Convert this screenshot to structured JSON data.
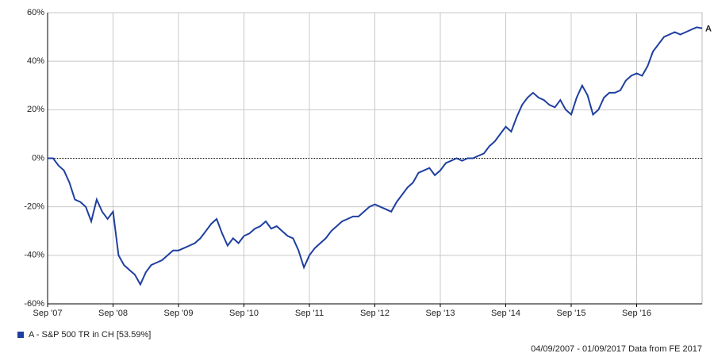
{
  "chart_data": {
    "type": "line",
    "x": [
      "2007-09",
      "2007-10",
      "2007-11",
      "2007-12",
      "2008-01",
      "2008-02",
      "2008-03",
      "2008-04",
      "2008-05",
      "2008-06",
      "2008-07",
      "2008-08",
      "2008-09",
      "2008-10",
      "2008-11",
      "2008-12",
      "2009-01",
      "2009-02",
      "2009-03",
      "2009-04",
      "2009-05",
      "2009-06",
      "2009-07",
      "2009-08",
      "2009-09",
      "2009-10",
      "2009-11",
      "2009-12",
      "2010-01",
      "2010-02",
      "2010-03",
      "2010-04",
      "2010-05",
      "2010-06",
      "2010-07",
      "2010-08",
      "2010-09",
      "2010-10",
      "2010-11",
      "2010-12",
      "2011-01",
      "2011-02",
      "2011-03",
      "2011-04",
      "2011-05",
      "2011-06",
      "2011-07",
      "2011-08",
      "2011-09",
      "2011-10",
      "2011-11",
      "2011-12",
      "2012-01",
      "2012-02",
      "2012-03",
      "2012-04",
      "2012-05",
      "2012-06",
      "2012-07",
      "2012-08",
      "2012-09",
      "2012-10",
      "2012-11",
      "2012-12",
      "2013-01",
      "2013-02",
      "2013-03",
      "2013-04",
      "2013-05",
      "2013-06",
      "2013-07",
      "2013-08",
      "2013-09",
      "2013-10",
      "2013-11",
      "2013-12",
      "2014-01",
      "2014-02",
      "2014-03",
      "2014-04",
      "2014-05",
      "2014-06",
      "2014-07",
      "2014-08",
      "2014-09",
      "2014-10",
      "2014-11",
      "2014-12",
      "2015-01",
      "2015-02",
      "2015-03",
      "2015-04",
      "2015-05",
      "2015-06",
      "2015-07",
      "2015-08",
      "2015-09",
      "2015-10",
      "2015-11",
      "2015-12",
      "2016-01",
      "2016-02",
      "2016-03",
      "2016-04",
      "2016-05",
      "2016-06",
      "2016-07",
      "2016-08",
      "2016-09",
      "2016-10",
      "2016-11",
      "2016-12",
      "2017-01",
      "2017-02",
      "2017-03",
      "2017-04",
      "2017-05",
      "2017-06",
      "2017-07",
      "2017-08",
      "2017-09"
    ],
    "series": [
      {
        "name": "A - S&P 500 TR in CH [53.59%]",
        "marker": "A",
        "color": "#1f3fa0",
        "values": [
          0,
          0,
          -3,
          -5,
          -10,
          -17,
          -18,
          -20,
          -26,
          -17,
          -22,
          -25,
          -22,
          -40,
          -44,
          -46,
          -48,
          -52,
          -47,
          -44,
          -43,
          -42,
          -40,
          -38,
          -38,
          -37,
          -36,
          -35,
          -33,
          -30,
          -27,
          -25,
          -31,
          -36,
          -33,
          -35,
          -32,
          -31,
          -29,
          -28,
          -26,
          -29,
          -28,
          -30,
          -32,
          -33,
          -38,
          -45,
          -40,
          -37,
          -35,
          -33,
          -30,
          -28,
          -26,
          -25,
          -24,
          -24,
          -22,
          -20,
          -19,
          -20,
          -21,
          -22,
          -18,
          -15,
          -12,
          -10,
          -6,
          -5,
          -4,
          -7,
          -5,
          -2,
          -1,
          0,
          -1,
          0,
          0,
          1,
          2,
          5,
          7,
          10,
          13,
          11,
          17,
          22,
          25,
          27,
          25,
          24,
          22,
          21,
          24,
          20,
          18,
          25,
          30,
          26,
          18,
          20,
          25,
          27,
          27,
          28,
          32,
          34,
          35,
          34,
          38,
          44,
          47,
          50,
          51,
          52,
          51,
          52,
          53,
          54,
          53.59
        ]
      }
    ],
    "xlim": [
      "2007-09",
      "2017-09"
    ],
    "xticks": [
      {
        "value": "2007-09",
        "label": "Sep '07"
      },
      {
        "value": "2008-09",
        "label": "Sep '08"
      },
      {
        "value": "2009-09",
        "label": "Sep '09"
      },
      {
        "value": "2010-09",
        "label": "Sep '10"
      },
      {
        "value": "2011-09",
        "label": "Sep '11"
      },
      {
        "value": "2012-09",
        "label": "Sep '12"
      },
      {
        "value": "2013-09",
        "label": "Sep '13"
      },
      {
        "value": "2014-09",
        "label": "Sep '14"
      },
      {
        "value": "2015-09",
        "label": "Sep '15"
      },
      {
        "value": "2016-09",
        "label": "Sep '16"
      }
    ],
    "ylim": [
      -60,
      60
    ],
    "yticks": [
      {
        "value": -60,
        "label": "-60%"
      },
      {
        "value": -40,
        "label": "-40%"
      },
      {
        "value": -20,
        "label": "-20%"
      },
      {
        "value": 0,
        "label": "0%"
      },
      {
        "value": 20,
        "label": "20%"
      },
      {
        "value": 40,
        "label": "40%"
      },
      {
        "value": 60,
        "label": "60%"
      }
    ],
    "grid": true,
    "footnote": "04/09/2007 - 01/09/2017 Data from FE 2017"
  }
}
